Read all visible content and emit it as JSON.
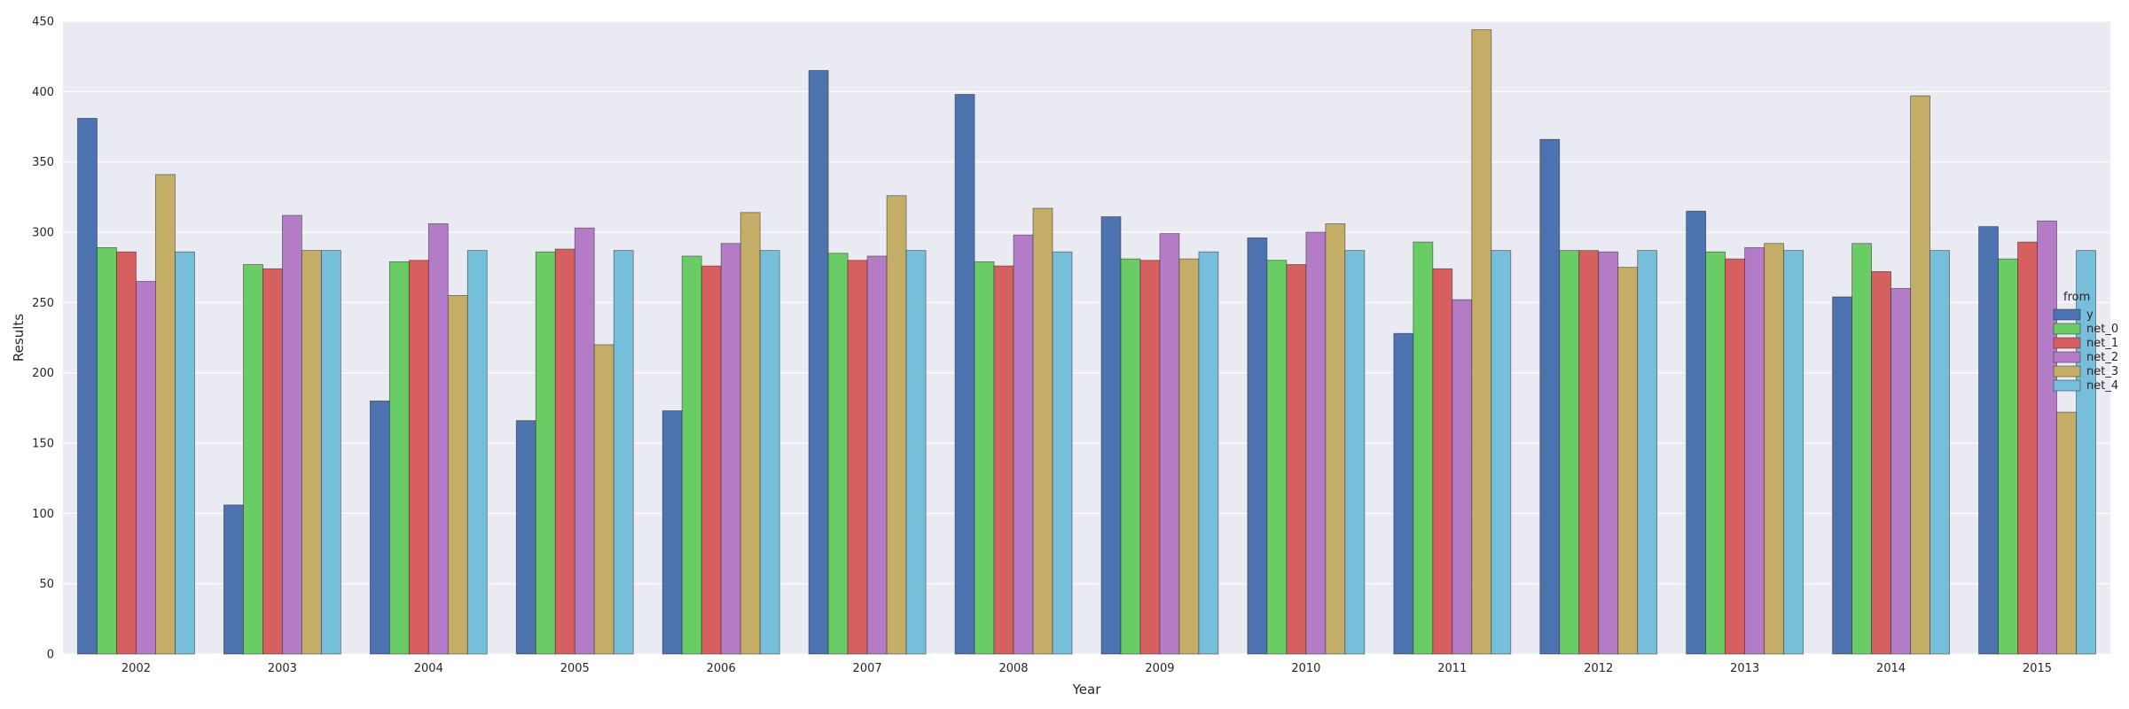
{
  "chart_data": {
    "type": "bar",
    "xlabel": "Year",
    "ylabel": "Results",
    "ylim": [
      0,
      450
    ],
    "yticks": [
      "0",
      "50",
      "100",
      "150",
      "200",
      "250",
      "300",
      "350",
      "400",
      "450"
    ],
    "grid": true,
    "legend": {
      "title": "from",
      "placement": "right"
    },
    "categories": [
      "2002",
      "2003",
      "2004",
      "2005",
      "2006",
      "2007",
      "2008",
      "2009",
      "2010",
      "2011",
      "2012",
      "2013",
      "2014",
      "2015"
    ],
    "series": [
      {
        "name": "y",
        "color": "#4c72b0",
        "values": [
          381,
          106,
          180,
          166,
          173,
          415,
          398,
          311,
          296,
          228,
          366,
          315,
          254,
          304
        ]
      },
      {
        "name": "net_0",
        "color": "#6acc65",
        "values": [
          289,
          277,
          279,
          286,
          283,
          285,
          279,
          281,
          280,
          293,
          287,
          286,
          292,
          281
        ]
      },
      {
        "name": "net_1",
        "color": "#d65f5f",
        "values": [
          286,
          274,
          280,
          288,
          276,
          280,
          276,
          280,
          277,
          274,
          287,
          281,
          272,
          293
        ]
      },
      {
        "name": "net_2",
        "color": "#b47cc7",
        "values": [
          265,
          312,
          306,
          303,
          292,
          283,
          298,
          299,
          300,
          252,
          286,
          289,
          260,
          308
        ]
      },
      {
        "name": "net_3",
        "color": "#c4ad66",
        "values": [
          341,
          287,
          255,
          220,
          314,
          326,
          317,
          281,
          306,
          444,
          275,
          292,
          397,
          172
        ]
      },
      {
        "name": "net_4",
        "color": "#77bedb",
        "values": [
          286,
          287,
          287,
          287,
          287,
          287,
          286,
          286,
          287,
          287,
          287,
          287,
          287,
          287
        ]
      }
    ]
  }
}
